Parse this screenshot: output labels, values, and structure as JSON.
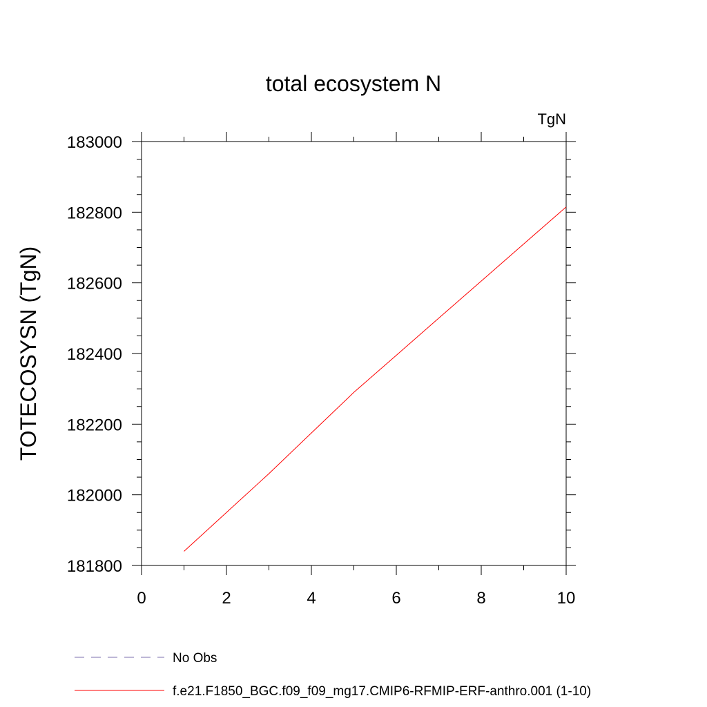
{
  "chart_data": {
    "type": "line",
    "title": "total ecosystem N",
    "units_label": "TgN",
    "xlabel": "",
    "ylabel": "TOTECOSYSN  (TgN)",
    "xlim": [
      0,
      10
    ],
    "ylim": [
      181800,
      183000
    ],
    "xticks": [
      0,
      2,
      4,
      6,
      8,
      10
    ],
    "yticks": [
      181800,
      182000,
      182200,
      182400,
      182600,
      182800,
      183000
    ],
    "xtick_labels": [
      "0",
      "2",
      "4",
      "6",
      "8",
      "10"
    ],
    "ytick_labels": [
      "181800",
      "182000",
      "182200",
      "182400",
      "182600",
      "182800",
      "183000"
    ],
    "grid": false,
    "legend_position": "bottom",
    "series": [
      {
        "name": "No Obs",
        "color": "#7b6fae",
        "dash": "dashed",
        "x": [],
        "y": []
      },
      {
        "name": "f.e21.F1850_BGC.f09_f09_mg17.CMIP6-RFMIP-ERF-anthro.001 (1-10)",
        "color": "#ff0000",
        "dash": "solid",
        "x": [
          1,
          2,
          3,
          4,
          5,
          6,
          7,
          8,
          9,
          10
        ],
        "y": [
          181840,
          181950,
          182060,
          182175,
          182290,
          182395,
          182500,
          182605,
          182710,
          182815
        ]
      }
    ]
  }
}
